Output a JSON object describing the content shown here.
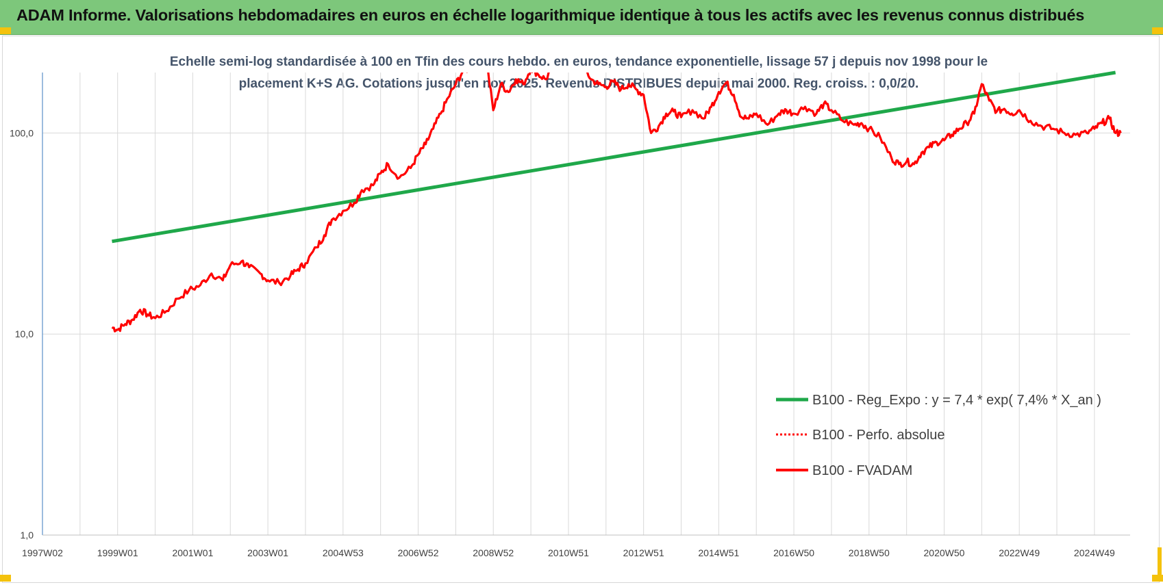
{
  "banner": {
    "title": "ADAM Informe. Valorisations hebdomadaires en euros en échelle logarithmique identique à tous les actifs avec les revenus connus distribués"
  },
  "colors": {
    "banner_bg": "#7dc77b",
    "trend_green": "#1fa84a",
    "perf_red": "#ff0000",
    "fvadam_red": "#ff0000",
    "grid": "#d9d9d9",
    "subtitle": "#44546a",
    "corner_marks": "#f4c20d"
  },
  "chart_data": {
    "type": "line",
    "title_lines": [
      "Echelle semi-log standardisée à 100 en Tfin des cours hebdo. en euros, tendance exponentielle, lissage 57 j depuis nov 1998 pour le",
      "placement K+S AG. Cotations jusqu'en nov 2025. Revenus DISTRIBUES depuis mai 2000. Reg. croiss. : 0,0/20."
    ],
    "y_scale": "log",
    "ylim": [
      1,
      200
    ],
    "xlim": [
      1997.0,
      2025.95
    ],
    "y_ticks": [
      {
        "value": 1,
        "label": "1,0"
      },
      {
        "value": 10,
        "label": "10,0"
      },
      {
        "value": 100,
        "label": "100,0"
      }
    ],
    "x_ticks": [
      {
        "value": 1997.0,
        "label": "1997W02"
      },
      {
        "value": 1999.0,
        "label": "1999W01"
      },
      {
        "value": 2001.0,
        "label": "2001W01"
      },
      {
        "value": 2003.0,
        "label": "2003W01"
      },
      {
        "value": 2005.0,
        "label": "2004W53"
      },
      {
        "value": 2007.0,
        "label": "2006W52"
      },
      {
        "value": 2009.0,
        "label": "2008W52"
      },
      {
        "value": 2011.0,
        "label": "2010W51"
      },
      {
        "value": 2013.0,
        "label": "2012W51"
      },
      {
        "value": 2015.0,
        "label": "2014W51"
      },
      {
        "value": 2017.0,
        "label": "2016W50"
      },
      {
        "value": 2019.0,
        "label": "2018W50"
      },
      {
        "value": 2021.0,
        "label": "2020W50"
      },
      {
        "value": 2023.0,
        "label": "2022W49"
      },
      {
        "value": 2025.0,
        "label": "2024W49"
      }
    ],
    "grid": true,
    "legend_position": "bottom-right",
    "series": [
      {
        "name": "B100 - Reg_Expo : y = 7,4 * exp( 7,4% *  X_an )",
        "style": "solid-thick",
        "color": "#1fa84a",
        "x": [
          1998.85,
          2025.56
        ],
        "y": [
          28.9,
          200
        ]
      },
      {
        "name": "B100 - Perfo. absolue",
        "style": "dotted",
        "color": "#ff0000",
        "x": [],
        "y": []
      },
      {
        "name": "B100 - FVADAM",
        "style": "solid",
        "color": "#ff0000",
        "x": [
          1998.85,
          1999.0,
          1999.2,
          1999.4,
          1999.6,
          1999.8,
          2000.0,
          2000.3,
          2000.6,
          2000.9,
          2001.2,
          2001.5,
          2001.8,
          2002.0,
          2002.3,
          2002.5,
          2002.8,
          2003.0,
          2003.3,
          2003.6,
          2003.8,
          2004.0,
          2004.3,
          2004.5,
          2004.7,
          2005.0,
          2005.3,
          2005.5,
          2005.8,
          2006.0,
          2006.2,
          2006.5,
          2006.8,
          2007.0,
          2007.2,
          2007.4,
          2007.6,
          2007.8,
          2008.0,
          2008.2,
          2008.4,
          2008.6,
          2008.8,
          2009.0,
          2009.2,
          2009.4,
          2009.6,
          2009.8,
          2010.0,
          2010.2,
          2010.4,
          2010.6,
          2010.8,
          2011.0,
          2011.2,
          2011.4,
          2011.6,
          2011.8,
          2012.0,
          2012.2,
          2012.4,
          2012.6,
          2012.8,
          2013.0,
          2013.2,
          2013.4,
          2013.6,
          2013.8,
          2014.0,
          2014.3,
          2014.6,
          2014.8,
          2015.0,
          2015.2,
          2015.4,
          2015.6,
          2015.8,
          2016.0,
          2016.3,
          2016.6,
          2016.8,
          2017.0,
          2017.3,
          2017.6,
          2017.8,
          2018.0,
          2018.3,
          2018.6,
          2018.8,
          2019.0,
          2019.3,
          2019.6,
          2019.8,
          2020.0,
          2020.2,
          2020.4,
          2020.6,
          2020.8,
          2021.0,
          2021.2,
          2021.4,
          2021.6,
          2021.8,
          2022.0,
          2022.2,
          2022.4,
          2022.6,
          2022.8,
          2023.0,
          2023.3,
          2023.6,
          2023.9,
          2024.2,
          2024.5,
          2024.8,
          2025.0,
          2025.2,
          2025.4,
          2025.56,
          2025.7
        ],
        "y": [
          10.8,
          10.5,
          11.2,
          11.8,
          13.2,
          12.5,
          12.0,
          13.0,
          15.0,
          16.5,
          17.5,
          20.0,
          18.5,
          22.0,
          23.0,
          21.5,
          20.0,
          18.5,
          18.0,
          19.5,
          21.0,
          22.5,
          27.0,
          31.0,
          37.0,
          41.0,
          45.0,
          52.0,
          55.0,
          63.0,
          70.0,
          60.0,
          67.0,
          78.0,
          88.0,
          105.0,
          125.0,
          150.0,
          175.0,
          205.0,
          210.0,
          230.0,
          240.0,
          130.0,
          175.0,
          160.0,
          185.0,
          175.0,
          210.0,
          195.0,
          185.0,
          220.0,
          225.0,
          210.0,
          230.0,
          215.0,
          185.0,
          175.0,
          170.0,
          180.0,
          165.0,
          175.0,
          165.0,
          155.0,
          100.0,
          108.0,
          125.0,
          128.0,
          120.0,
          130.0,
          118.0,
          135.0,
          160.0,
          178.0,
          155.0,
          120.0,
          118.0,
          125.0,
          110.0,
          125.0,
          130.0,
          125.0,
          135.0,
          125.0,
          140.0,
          130.0,
          115.0,
          110.0,
          112.0,
          105.0,
          95.0,
          75.0,
          70.0,
          72.0,
          70.0,
          80.0,
          85.0,
          90.0,
          92.0,
          98.0,
          105.0,
          112.0,
          125.0,
          175.0,
          145.0,
          128.0,
          132.0,
          125.0,
          130.0,
          115.0,
          108.0,
          105.0,
          100.0,
          98.0,
          100.0,
          105.0,
          112.0,
          118.0,
          100.0,
          100.0
        ]
      }
    ]
  }
}
